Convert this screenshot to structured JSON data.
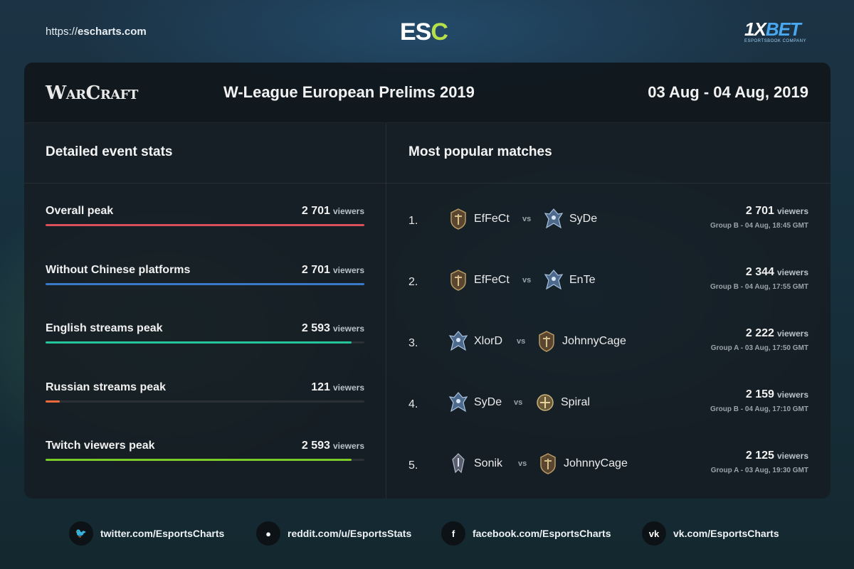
{
  "header": {
    "url_prefix": "https://",
    "url_domain": "escharts.com",
    "logo_main": "ES",
    "logo_accent": "C",
    "sponsor_x": "1X",
    "sponsor_name": "BET",
    "sponsor_sub": "ESPORTSBOOK COMPANY"
  },
  "event": {
    "game_logo": "WarCraft",
    "title": "W-League European Prelims 2019",
    "dates": "03 Aug - 04 Aug, 2019"
  },
  "stats": {
    "title": "Detailed event stats",
    "unit": "viewers",
    "items": [
      {
        "label": "Overall peak",
        "value": "2 701",
        "fill": 1.0,
        "color": "#d9505b"
      },
      {
        "label": "Without Chinese platforms",
        "value": "2 701",
        "fill": 1.0,
        "color": "#3a78c8"
      },
      {
        "label": "English streams peak",
        "value": "2 593",
        "fill": 0.96,
        "color": "#25c49a"
      },
      {
        "label": "Russian streams peak",
        "value": "121",
        "fill": 0.045,
        "color": "#f26a3c"
      },
      {
        "label": "Twitch viewers peak",
        "value": "2 593",
        "fill": 0.96,
        "color": "#7cc92a"
      }
    ]
  },
  "matches": {
    "title": "Most popular matches",
    "unit": "viewers",
    "vs": "vs",
    "items": [
      {
        "rank": "1.",
        "team1": "EfFeCt",
        "team1_icon": "orc-crest-icon",
        "team2": "SyDe",
        "team2_icon": "undead-crest-icon",
        "value": "2 701",
        "meta": "Group B - 04 Aug, 18:45 GMT"
      },
      {
        "rank": "2.",
        "team1": "EfFeCt",
        "team1_icon": "orc-crest-icon",
        "team2": "EnTe",
        "team2_icon": "undead-crest-icon",
        "value": "2 344",
        "meta": "Group B - 04 Aug, 17:55 GMT"
      },
      {
        "rank": "3.",
        "team1": "XlorD",
        "team1_icon": "undead-crest-icon",
        "team2": "JohnnyCage",
        "team2_icon": "orc-crest-icon",
        "value": "2 222",
        "meta": "Group A - 03 Aug, 17:50 GMT"
      },
      {
        "rank": "4.",
        "team1": "SyDe",
        "team1_icon": "undead-crest-icon",
        "team2": "Spiral",
        "team2_icon": "human-crest-icon",
        "value": "2 159",
        "meta": "Group B - 04 Aug, 17:10 GMT"
      },
      {
        "rank": "5.",
        "team1": "Sonik",
        "team1_icon": "nightelf-crest-icon",
        "team2": "JohnnyCage",
        "team2_icon": "orc-crest-icon",
        "value": "2 125",
        "meta": "Group A - 03 Aug, 19:30 GMT"
      }
    ]
  },
  "footer": {
    "twitter": "twitter.com/EsportsCharts",
    "reddit": "reddit.com/u/EsportsStats",
    "facebook": "facebook.com/EsportsCharts",
    "vk": "vk.com/EsportsCharts",
    "twitter_glyph": "🐦",
    "reddit_glyph": "●",
    "facebook_glyph": "f",
    "vk_glyph": "vk"
  }
}
